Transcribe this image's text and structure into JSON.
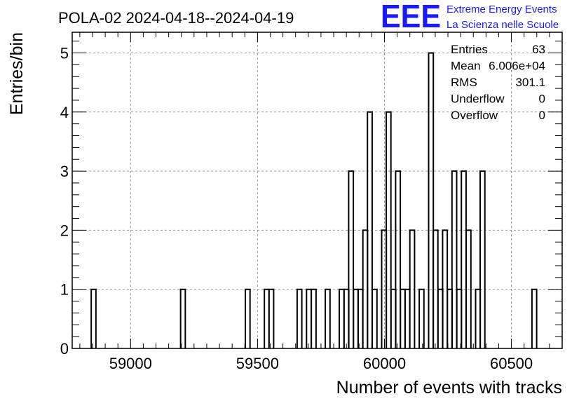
{
  "chart_data": {
    "type": "bar",
    "histogram": true,
    "title": "POLA-02 2024-04-18--2024-04-19",
    "xlabel": "Number of events with tracks",
    "ylabel": "Entries/bin",
    "xlim": [
      58770,
      60700
    ],
    "ylim": [
      0,
      5.35
    ],
    "bin_width": 18.5,
    "x_ticks": [
      59000,
      59500,
      60000,
      60500
    ],
    "x_tick_labels": [
      "59000",
      "59500",
      "60000",
      "60500"
    ],
    "y_ticks": [
      0,
      1,
      2,
      3,
      4,
      5
    ],
    "y_tick_labels": [
      "0",
      "1",
      "2",
      "3",
      "4",
      "5"
    ],
    "grid": true,
    "bins": [
      {
        "x": 58845,
        "count": 1
      },
      {
        "x": 59197,
        "count": 1
      },
      {
        "x": 59452,
        "count": 1
      },
      {
        "x": 59527,
        "count": 1
      },
      {
        "x": 59545,
        "count": 1
      },
      {
        "x": 59656,
        "count": 1
      },
      {
        "x": 59693,
        "count": 1
      },
      {
        "x": 59712,
        "count": 1
      },
      {
        "x": 59767,
        "count": 1
      },
      {
        "x": 59822,
        "count": 1
      },
      {
        "x": 59841,
        "count": 1
      },
      {
        "x": 59859,
        "count": 3
      },
      {
        "x": 59878,
        "count": 1
      },
      {
        "x": 59896,
        "count": 1
      },
      {
        "x": 59915,
        "count": 2
      },
      {
        "x": 59933,
        "count": 4
      },
      {
        "x": 59952,
        "count": 1
      },
      {
        "x": 59989,
        "count": 2
      },
      {
        "x": 60007,
        "count": 4
      },
      {
        "x": 60026,
        "count": 1
      },
      {
        "x": 60044,
        "count": 3
      },
      {
        "x": 60063,
        "count": 1
      },
      {
        "x": 60081,
        "count": 1
      },
      {
        "x": 60100,
        "count": 2
      },
      {
        "x": 60137,
        "count": 1
      },
      {
        "x": 60174,
        "count": 5
      },
      {
        "x": 60192,
        "count": 2
      },
      {
        "x": 60211,
        "count": 1
      },
      {
        "x": 60229,
        "count": 2
      },
      {
        "x": 60248,
        "count": 1
      },
      {
        "x": 60266,
        "count": 3
      },
      {
        "x": 60285,
        "count": 1
      },
      {
        "x": 60303,
        "count": 3
      },
      {
        "x": 60322,
        "count": 2
      },
      {
        "x": 60359,
        "count": 1
      },
      {
        "x": 60377,
        "count": 3
      },
      {
        "x": 60581,
        "count": 1
      }
    ],
    "stats": [
      {
        "label": "Entries",
        "value": "63"
      },
      {
        "label": "Mean",
        "value": "6.006e+04"
      },
      {
        "label": "RMS",
        "value": "301.1"
      },
      {
        "label": "Underflow",
        "value": "0"
      },
      {
        "label": "Overflow",
        "value": "0"
      }
    ]
  },
  "logo": {
    "mark": "EEE",
    "line1": "Extreme Energy Events",
    "line2": "La Scienza nelle Scuole"
  },
  "colors": {
    "histogram": "#000000",
    "grid": "#9a9a9a",
    "logo": "#1a1aff"
  }
}
